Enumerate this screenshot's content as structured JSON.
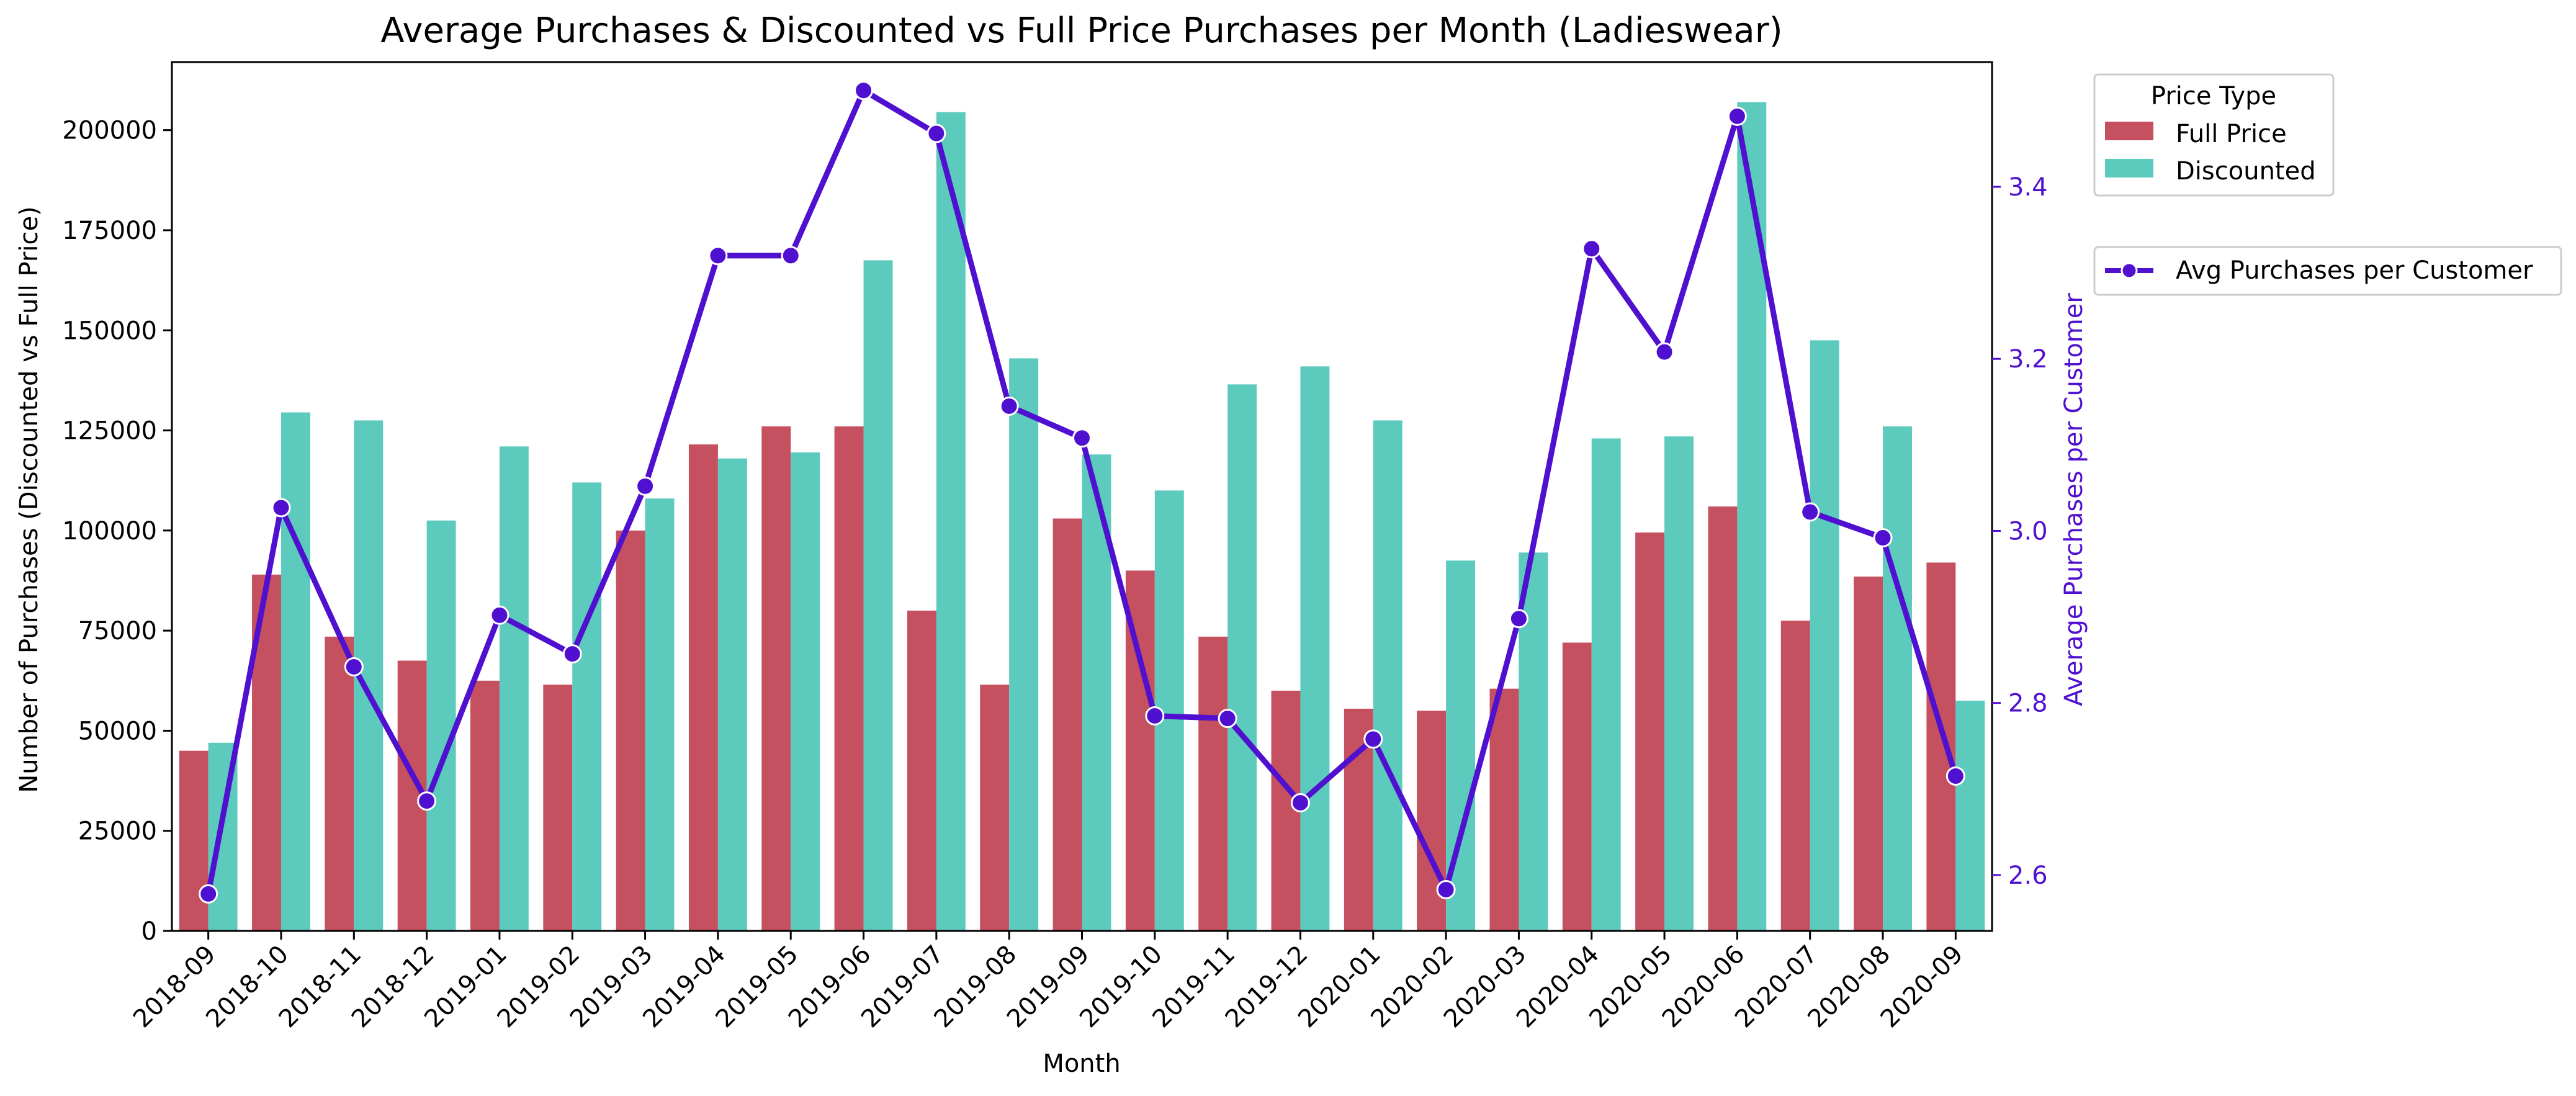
{
  "chart_data": {
    "type": "bar",
    "title": "Average Purchases & Discounted vs Full Price Purchases per Month (Ladieswear)",
    "xlabel": "Month",
    "ylabel": "Number of Purchases (Discounted vs Full Price)",
    "y2label": "Average Purchases per Customer",
    "categories": [
      "2018-09",
      "2018-10",
      "2018-11",
      "2018-12",
      "2019-01",
      "2019-02",
      "2019-03",
      "2019-04",
      "2019-05",
      "2019-06",
      "2019-07",
      "2019-08",
      "2019-09",
      "2019-10",
      "2019-11",
      "2019-12",
      "2020-01",
      "2020-02",
      "2020-03",
      "2020-04",
      "2020-05",
      "2020-06",
      "2020-07",
      "2020-08",
      "2020-09"
    ],
    "ylim": [
      0,
      217000
    ],
    "yticks": [
      0,
      25000,
      50000,
      75000,
      100000,
      125000,
      150000,
      175000,
      200000
    ],
    "y2lim": [
      2.535,
      3.545
    ],
    "y2ticks": [
      "2.6",
      "2.8",
      "3.0",
      "3.2",
      "3.4"
    ],
    "legend_title": "Price Type",
    "legend_position": "outside-right",
    "series": [
      {
        "name": "Full Price",
        "type": "bar",
        "axis": "left",
        "color": "#c5505f",
        "values": [
          45000,
          89000,
          73500,
          67500,
          62500,
          61500,
          100000,
          121500,
          126000,
          126000,
          80000,
          61500,
          103000,
          90000,
          73500,
          60000,
          55500,
          55000,
          60500,
          72000,
          99500,
          106000,
          77500,
          88500,
          92000
        ]
      },
      {
        "name": "Discounted",
        "type": "bar",
        "axis": "left",
        "color": "#5ccbbd",
        "values": [
          47000,
          129500,
          127500,
          102500,
          121000,
          112000,
          108000,
          118000,
          119500,
          167500,
          204500,
          143000,
          119000,
          110000,
          136500,
          141000,
          127500,
          92500,
          94500,
          123000,
          123500,
          207000,
          147500,
          126000,
          57500
        ]
      },
      {
        "name": "Avg Purchases per Customer",
        "type": "line",
        "axis": "right",
        "color": "#5010d0",
        "values": [
          2.578,
          3.027,
          2.842,
          2.686,
          2.902,
          2.857,
          3.052,
          3.32,
          3.32,
          3.512,
          3.462,
          3.145,
          3.108,
          2.785,
          2.782,
          2.684,
          2.758,
          2.583,
          2.898,
          3.328,
          3.208,
          3.482,
          3.022,
          2.992,
          2.715
        ]
      }
    ]
  }
}
